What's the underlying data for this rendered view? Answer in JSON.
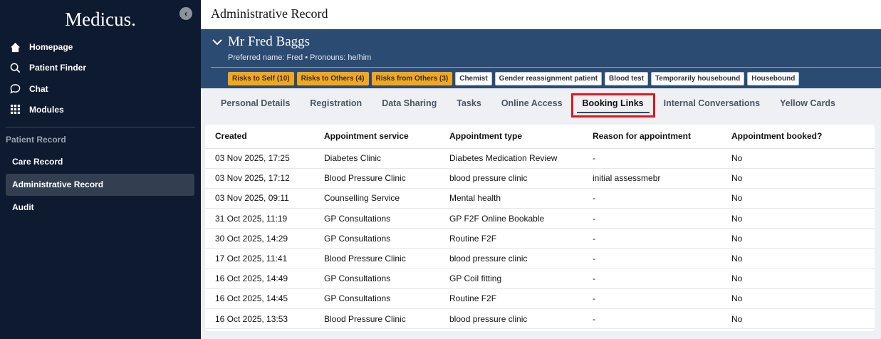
{
  "sidebar": {
    "logo": "Medicus.",
    "nav": [
      "Homepage",
      "Patient Finder",
      "Chat",
      "Modules"
    ],
    "section_label": "Patient Record",
    "record_nav": [
      "Care Record",
      "Administrative Record",
      "Audit"
    ],
    "record_nav_selected": 1
  },
  "header": {
    "title": "Administrative Record"
  },
  "patient": {
    "name": "Mr Fred Baggs",
    "details": "Preferred name: Fred • Pronouns: he/him",
    "tags": [
      {
        "label": "Risks to Self (10)",
        "color": "#f5a71c"
      },
      {
        "label": "Risks to Others (4)",
        "color": "#f5a71c"
      },
      {
        "label": "Risks from Others (3)",
        "color": "#f5a71c"
      },
      {
        "label": "Chemist",
        "color": "#ffffff"
      },
      {
        "label": "Gender reassignment patient",
        "color": "#ffffff"
      },
      {
        "label": "Blood test",
        "color": "#ffffff"
      },
      {
        "label": "Temporarily housebound",
        "color": "#ffffff"
      },
      {
        "label": "Housebound",
        "color": "#ffffff"
      }
    ]
  },
  "tabs": {
    "items": [
      "Personal Details",
      "Registration",
      "Data Sharing",
      "Tasks",
      "Online Access",
      "Booking Links",
      "Internal Conversations",
      "Yellow Cards"
    ],
    "selected": 5
  },
  "table": {
    "columns": [
      "Created",
      "Appointment service",
      "Appointment type",
      "Reason for appointment",
      "Appointment booked?"
    ],
    "rows": [
      [
        "03 Nov 2025, 17:25",
        "Diabetes Clinic",
        "Diabetes Medication Review",
        "-",
        "No"
      ],
      [
        "03 Nov 2025, 17:12",
        "Blood Pressure Clinic",
        "blood pressure clinic",
        "initial assessmebr",
        "No"
      ],
      [
        "03 Nov 2025, 09:11",
        "Counselling Service",
        "Mental health",
        "-",
        "No"
      ],
      [
        "31 Oct 2025, 11:19",
        "GP Consultations",
        "GP F2F Online Bookable",
        "-",
        "No"
      ],
      [
        "30 Oct 2025, 14:29",
        "GP Consultations",
        "Routine F2F",
        "-",
        "No"
      ],
      [
        "17 Oct 2025, 11:41",
        "Blood Pressure Clinic",
        "blood pressure clinic",
        "-",
        "No"
      ],
      [
        "16 Oct 2025, 14:49",
        "GP Consultations",
        "GP Coil fitting",
        "-",
        "No"
      ],
      [
        "16 Oct 2025, 14:45",
        "GP Consultations",
        "Routine F2F",
        "-",
        "No"
      ],
      [
        "16 Oct 2025, 13:53",
        "Blood Pressure Clinic",
        "blood pressure clinic",
        "-",
        "No"
      ]
    ]
  }
}
